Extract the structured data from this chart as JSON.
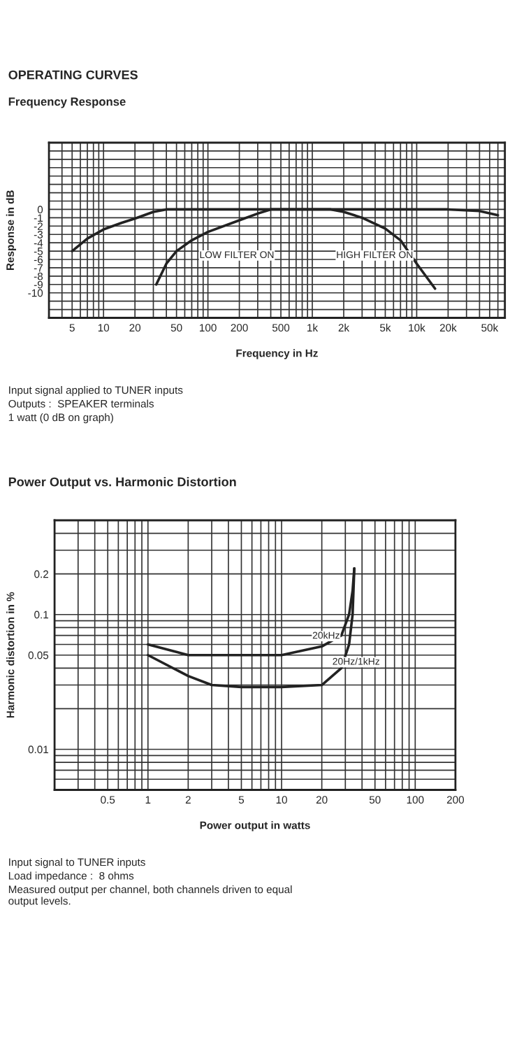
{
  "chart_data": [
    {
      "type": "line",
      "title": "OPERATING CURVES",
      "subtitle": "Frequency Response",
      "xlabel": "Frequency in Hz",
      "ylabel": "Response in dB",
      "log": "x",
      "grid": true,
      "xlim": [
        3,
        70000
      ],
      "ylim": [
        -13,
        8
      ],
      "xticks": [
        5,
        10,
        20,
        50,
        100,
        200,
        500,
        {
          "value": 1000,
          "label": "1k"
        },
        {
          "value": 2000,
          "label": "2k"
        },
        {
          "value": 5000,
          "label": "5k"
        },
        {
          "value": 10000,
          "label": "10k"
        },
        {
          "value": 20000,
          "label": "20k"
        },
        {
          "value": 50000,
          "label": "50k"
        }
      ],
      "yticks": [
        0,
        -1,
        -2,
        -3,
        -4,
        -5,
        -6,
        -7,
        -8,
        -9,
        -10
      ],
      "series": [
        {
          "color": "#222222",
          "x": [
            5,
            7,
            10,
            15,
            20,
            30,
            40,
            20000,
            40000,
            60000
          ],
          "values": [
            -5,
            -3.5,
            -2.4,
            -1.6,
            -1.1,
            -0.3,
            0,
            0,
            -0.2,
            -0.7
          ]
        },
        {
          "color": "#222222",
          "x": [
            32,
            40,
            50,
            70,
            100,
            200,
            300,
            400,
            1500,
            2000,
            3000,
            5000,
            7000,
            10000,
            15000
          ],
          "values": [
            -9,
            -6.5,
            -5,
            -3.7,
            -2.7,
            -1.3,
            -0.5,
            0,
            0,
            -0.3,
            -1,
            -2.3,
            -3.7,
            -6.5,
            -9.5
          ]
        }
      ],
      "annotations": [
        "LOW FILTER ON",
        "HIGH FILTER ON",
        "Input signal applied to TUNER inputs",
        "Outputs :  SPEAKER terminals",
        "1 watt (0 dB on graph)"
      ]
    },
    {
      "type": "line",
      "title": "Power Output vs. Harmonic Distortion",
      "xlabel": "Power output in watts",
      "ylabel": "Harmonic distortion in %",
      "log": "xy",
      "grid": true,
      "xlim": [
        0.2,
        200
      ],
      "ylim": [
        0.005,
        0.5
      ],
      "xticks": [
        0.5,
        1,
        2,
        5,
        10,
        20,
        50,
        100,
        200
      ],
      "yticks": [
        0.01,
        0.05,
        0.1,
        0.2
      ],
      "series": [
        {
          "color": "#222222",
          "x": [
            1,
            2,
            5,
            10,
            20,
            28,
            32,
            34,
            35
          ],
          "values": [
            0.06,
            0.05,
            0.05,
            0.05,
            0.058,
            0.07,
            0.1,
            0.15,
            0.22
          ]
        },
        {
          "color": "#222222",
          "x": [
            1,
            2,
            3,
            5,
            10,
            20,
            28,
            32,
            34,
            35
          ],
          "values": [
            0.05,
            0.035,
            0.03,
            0.029,
            0.029,
            0.03,
            0.04,
            0.06,
            0.1,
            0.22
          ]
        }
      ],
      "annotations": [
        {
          "text": "20kHz",
          "x": 17,
          "y": 0.064
        },
        {
          "text": "20Hz/1kHz",
          "x": 24,
          "y": 0.041
        },
        "Input signal to TUNER inputs",
        "Load impedance :  8 ohms",
        "Measured output per channel, both channels driven to equal output levels."
      ]
    }
  ]
}
